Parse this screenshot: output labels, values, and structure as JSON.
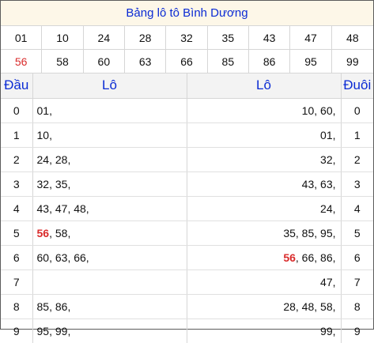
{
  "title": "Bảng lô tô Bình Dương",
  "numbers": [
    {
      "value": "01",
      "highlight": false
    },
    {
      "value": "10",
      "highlight": false
    },
    {
      "value": "24",
      "highlight": false
    },
    {
      "value": "28",
      "highlight": false
    },
    {
      "value": "32",
      "highlight": false
    },
    {
      "value": "35",
      "highlight": false
    },
    {
      "value": "43",
      "highlight": false
    },
    {
      "value": "47",
      "highlight": false
    },
    {
      "value": "48",
      "highlight": false
    },
    {
      "value": "56",
      "highlight": true
    },
    {
      "value": "58",
      "highlight": false
    },
    {
      "value": "60",
      "highlight": false
    },
    {
      "value": "63",
      "highlight": false
    },
    {
      "value": "66",
      "highlight": false
    },
    {
      "value": "85",
      "highlight": false
    },
    {
      "value": "86",
      "highlight": false
    },
    {
      "value": "95",
      "highlight": false
    },
    {
      "value": "99",
      "highlight": false
    }
  ],
  "table": {
    "headers": {
      "head": "Đầu",
      "lo_left": "Lô",
      "lo_right": "Lô",
      "tail": "Đuôi"
    },
    "rows": [
      {
        "head": "0",
        "left": [
          "01"
        ],
        "right": [
          "10",
          "60"
        ],
        "tail": "0"
      },
      {
        "head": "1",
        "left": [
          "10"
        ],
        "right": [
          "01"
        ],
        "tail": "1"
      },
      {
        "head": "2",
        "left": [
          "24",
          "28"
        ],
        "right": [
          "32"
        ],
        "tail": "2"
      },
      {
        "head": "3",
        "left": [
          "32",
          "35"
        ],
        "right": [
          "43",
          "63"
        ],
        "tail": "3"
      },
      {
        "head": "4",
        "left": [
          "43",
          "47",
          "48"
        ],
        "right": [
          "24"
        ],
        "tail": "4"
      },
      {
        "head": "5",
        "left": [
          "56",
          "58"
        ],
        "right": [
          "35",
          "85",
          "95"
        ],
        "tail": "5"
      },
      {
        "head": "6",
        "left": [
          "60",
          "63",
          "66"
        ],
        "right": [
          "56",
          "66",
          "86"
        ],
        "tail": "6"
      },
      {
        "head": "7",
        "left": [],
        "right": [
          "47"
        ],
        "tail": "7"
      },
      {
        "head": "8",
        "left": [
          "85",
          "86"
        ],
        "right": [
          "28",
          "48",
          "58"
        ],
        "tail": "8"
      },
      {
        "head": "9",
        "left": [
          "95",
          "99"
        ],
        "right": [
          "99"
        ],
        "tail": "9"
      }
    ]
  },
  "highlight_number": "56",
  "colors": {
    "title_text": "#0b2bd4",
    "highlight": "#d92b2b",
    "title_bg": "#fdf7e8",
    "header_bg": "#f3f3f3"
  }
}
